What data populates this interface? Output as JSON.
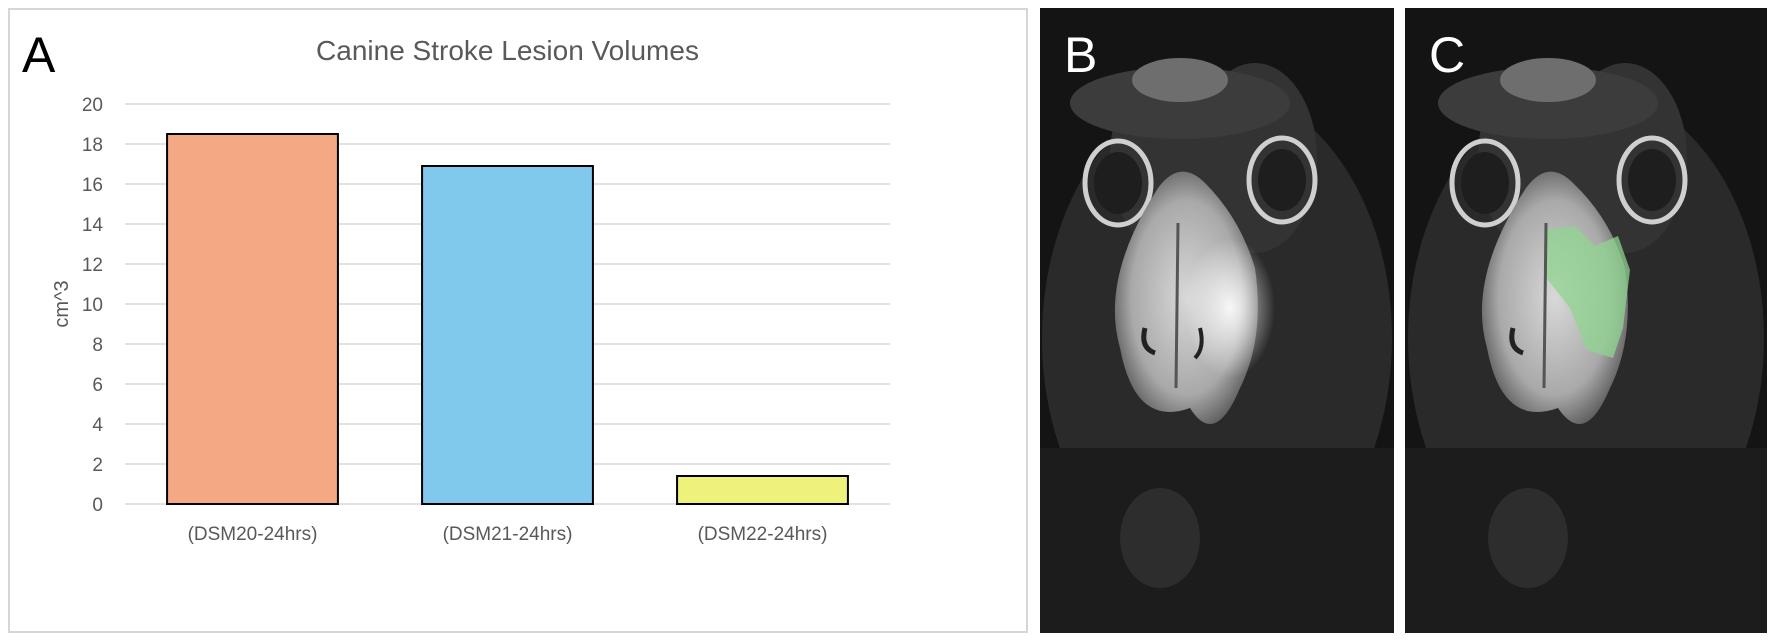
{
  "panels": {
    "a_label": "A",
    "b_label": "B",
    "c_label": "C"
  },
  "chart_data": {
    "type": "bar",
    "title": "Canine Stroke Lesion Volumes",
    "xlabel": "",
    "ylabel": "cm^3",
    "categories": [
      "(DSM20-24hrs)",
      "(DSM21-24hrs)",
      "(DSM22-24hrs)"
    ],
    "values": [
      18.5,
      16.9,
      1.4
    ],
    "colors": [
      "#f3a983",
      "#80c9ec",
      "#eef27a"
    ],
    "ylim": [
      0,
      20
    ],
    "yticks": [
      0,
      2,
      4,
      6,
      8,
      10,
      12,
      14,
      16,
      18,
      20
    ],
    "grid": true,
    "legend": "none"
  },
  "images": {
    "b_description_icon": "brain-mri-icon",
    "c_description_icon": "brain-mri-segmented-icon",
    "lesion_overlay_color": "#8fd48f"
  }
}
